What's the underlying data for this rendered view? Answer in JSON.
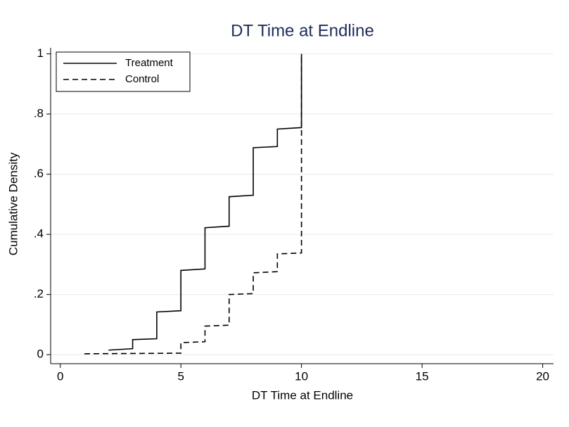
{
  "chart_data": {
    "type": "line",
    "title": "DT Time at Endline",
    "x_label": "DT Time at Endline",
    "y_label": "Cumulative Density",
    "xlim": [
      -0.4,
      20.45
    ],
    "ylim": [
      -0.03,
      1.02
    ],
    "xticks": [
      0,
      5,
      10,
      15,
      20
    ],
    "yticks": [
      0,
      {
        "value": 0.2,
        "label": ".2"
      },
      {
        "value": 0.4,
        "label": ".4"
      },
      {
        "value": 0.6,
        "label": ".6"
      },
      {
        "value": 0.8,
        "label": ".8"
      },
      1
    ],
    "grid": true,
    "legend": "top-left",
    "series": [
      {
        "name": "Treatment",
        "color": "#000000",
        "dash": "solid",
        "x": [
          2,
          3,
          3,
          4,
          4,
          5,
          5,
          6,
          6,
          7,
          7,
          8,
          8,
          9,
          9,
          10,
          10
        ],
        "values": [
          0.015,
          0.02,
          0.05,
          0.053,
          0.142,
          0.146,
          0.28,
          0.285,
          0.422,
          0.427,
          0.525,
          0.53,
          0.688,
          0.692,
          0.75,
          0.755,
          1
        ]
      },
      {
        "name": "Control",
        "color": "#000000",
        "dash": "dashed",
        "x": [
          1,
          5,
          5,
          6,
          6,
          7,
          7,
          8,
          8,
          9,
          9,
          10,
          10
        ],
        "values": [
          0.003,
          0.005,
          0.04,
          0.043,
          0.095,
          0.098,
          0.2,
          0.203,
          0.272,
          0.276,
          0.335,
          0.338,
          1
        ]
      }
    ]
  }
}
